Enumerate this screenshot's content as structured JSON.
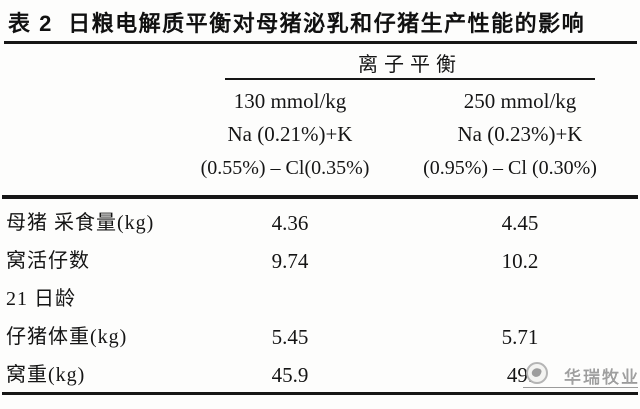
{
  "page": {
    "background": "#fdfdfc",
    "text_color": "#151515",
    "watermark_color": "#a3a3a3"
  },
  "table": {
    "title": "表 2  日粮电解质平衡对母猪泌乳和仔猪生产性能的影响",
    "group_header": "离子平衡",
    "columns": [
      {
        "dose": "130 mmol/kg",
        "na_k": "Na (0.21%)+K",
        "cl": "(0.55%) – Cl(0.35%)"
      },
      {
        "dose": "250 mmol/kg",
        "na_k": "Na (0.23%)+K",
        "cl": "(0.95%) – Cl (0.30%)"
      }
    ],
    "rows": [
      {
        "label": "母猪 采食量(kg)",
        "v1": "4.36",
        "v2": "4.45"
      },
      {
        "label": "窝活仔数",
        "v1": "9.74",
        "v2": "10.2"
      },
      {
        "label": "21 日龄",
        "v1": "",
        "v2": ""
      },
      {
        "label": "仔猪体重(kg)",
        "v1": "5.45",
        "v2": "5.71"
      },
      {
        "label": "窝重(kg)",
        "v1": "45.9",
        "v2": "49."
      }
    ]
  },
  "watermark": {
    "text": "华瑞牧业"
  }
}
